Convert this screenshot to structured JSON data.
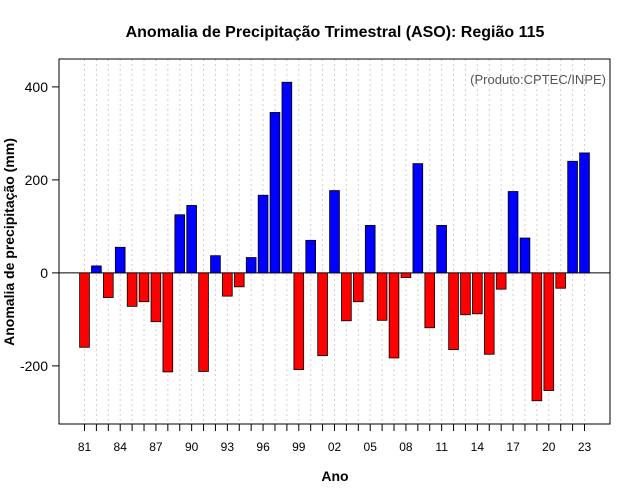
{
  "chart_data": {
    "type": "bar",
    "title": "Anomalia de Precipitação Trimestral (ASO): Região 115",
    "xlabel": "Ano",
    "ylabel": "Anomalia de precipitação (mm)",
    "annotation": "(Produto:CPTEC/INPE)",
    "ylim": [
      -325,
      460
    ],
    "yticks": [
      -200,
      0,
      200,
      400
    ],
    "grid": true,
    "positive_color": "#0000ff",
    "negative_color": "#ff0000",
    "x": [
      1981,
      1982,
      1983,
      1984,
      1985,
      1986,
      1987,
      1988,
      1989,
      1990,
      1991,
      1992,
      1993,
      1994,
      1995,
      1996,
      1997,
      1998,
      1999,
      2000,
      2001,
      2002,
      2003,
      2004,
      2005,
      2006,
      2007,
      2008,
      2009,
      2010,
      2011,
      2012,
      2013,
      2014,
      2015,
      2016,
      2017,
      2018,
      2019,
      2020,
      2021,
      2022,
      2023
    ],
    "values": [
      -160,
      15,
      -53,
      55,
      -72,
      -62,
      -105,
      -213,
      125,
      145,
      -212,
      37,
      -50,
      -30,
      33,
      167,
      345,
      410,
      -208,
      70,
      -178,
      177,
      -103,
      -62,
      102,
      -102,
      -183,
      -10,
      235,
      -118,
      102,
      -165,
      -90,
      -88,
      -175,
      -35,
      175,
      75,
      -275,
      -253,
      -33,
      240,
      258
    ],
    "categories_shown": [
      "81",
      "84",
      "87",
      "90",
      "93",
      "96",
      "99",
      "02",
      "05",
      "08",
      "11",
      "14",
      "17",
      "20",
      "23"
    ]
  }
}
